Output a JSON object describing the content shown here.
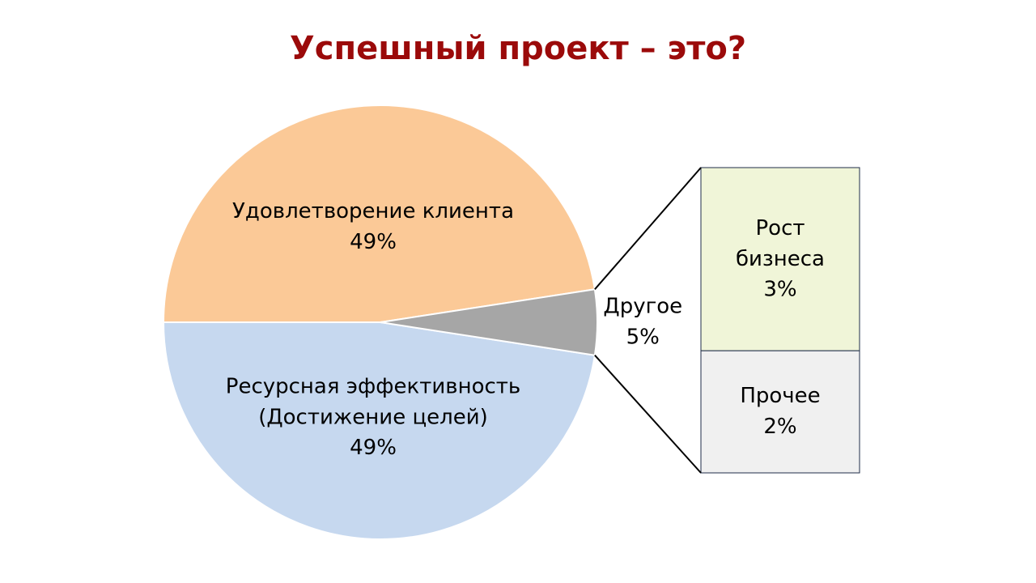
{
  "chart_data": {
    "type": "pie-of-bar",
    "title": "Успешный проект – это?",
    "categories": [
      "Удовлетворение клиента",
      "Ресурсная эффективность\n(Достижение целей)",
      "Другое"
    ],
    "values": [
      49,
      49,
      5
    ],
    "value_labels": [
      "49%",
      "49%",
      "5%"
    ],
    "colors": [
      "#fbc997",
      "#c6d8ef",
      "#a6a6a6"
    ],
    "secondary": {
      "categories": [
        "Рост\nбизнеса",
        "Прочее"
      ],
      "values": [
        3,
        2
      ],
      "value_labels": [
        "3%",
        "2%"
      ],
      "colors": [
        "#f0f5d8",
        "#f0f0f0"
      ]
    }
  }
}
